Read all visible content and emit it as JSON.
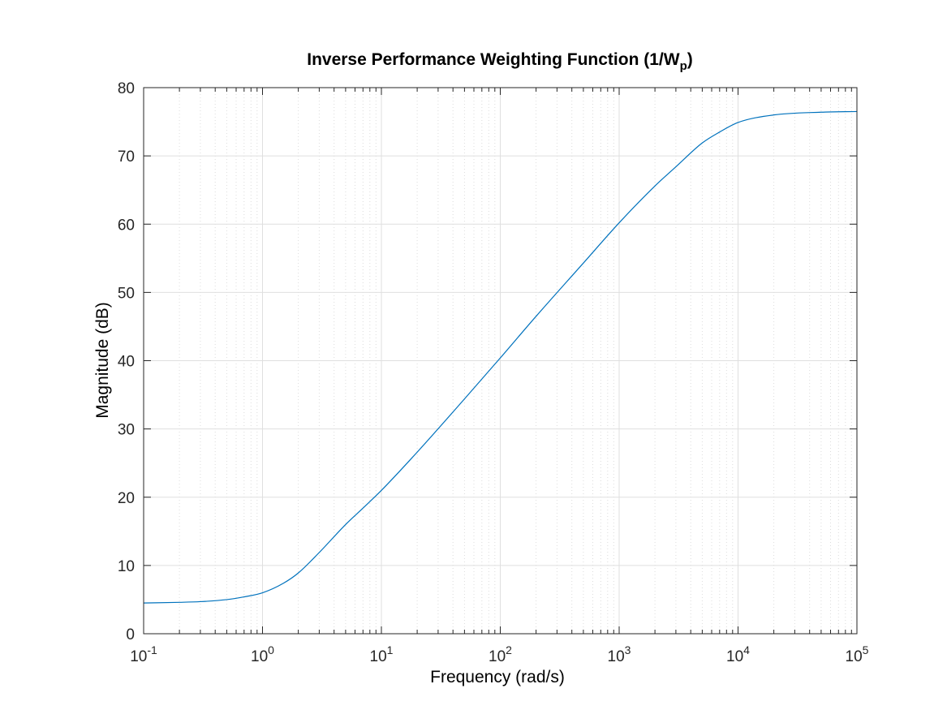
{
  "chart_data": {
    "type": "line",
    "title": {
      "main": "Inverse Performance Weighting Function (1/W",
      "subscript": "p",
      "close": ")"
    },
    "xlabel": "Frequency  (rad/s)",
    "ylabel": "Magnitude (dB)",
    "xscale": "log",
    "xlim": [
      0.1,
      100000
    ],
    "ylim": [
      0,
      80
    ],
    "grid": true,
    "minor_grid": true,
    "box": true,
    "x_ticks": [
      {
        "base": "10",
        "exp": "-1",
        "value": 0.1
      },
      {
        "base": "10",
        "exp": "0",
        "value": 1
      },
      {
        "base": "10",
        "exp": "1",
        "value": 10
      },
      {
        "base": "10",
        "exp": "2",
        "value": 100
      },
      {
        "base": "10",
        "exp": "3",
        "value": 1000
      },
      {
        "base": "10",
        "exp": "4",
        "value": 10000
      },
      {
        "base": "10",
        "exp": "5",
        "value": 100000
      }
    ],
    "y_ticks": [
      {
        "label": "0",
        "value": 0
      },
      {
        "label": "10",
        "value": 10
      },
      {
        "label": "20",
        "value": 20
      },
      {
        "label": "30",
        "value": 30
      },
      {
        "label": "40",
        "value": 40
      },
      {
        "label": "50",
        "value": 50
      },
      {
        "label": "60",
        "value": 60
      },
      {
        "label": "70",
        "value": 70
      },
      {
        "label": "80",
        "value": 80
      }
    ],
    "series": [
      {
        "color": "#0072bd",
        "x": [
          0.1,
          0.2,
          0.3,
          0.5,
          0.7,
          1,
          1.5,
          2,
          3,
          5,
          7,
          10,
          20,
          50,
          100,
          200,
          500,
          1000,
          2000,
          3000,
          5000,
          7000,
          10000,
          20000,
          50000,
          100000
        ],
        "y": [
          4.5,
          4.6,
          4.7,
          5.0,
          5.4,
          6.0,
          7.4,
          8.9,
          11.9,
          16.0,
          18.4,
          21.0,
          26.6,
          34.4,
          40.4,
          46.5,
          54.3,
          60.2,
          65.6,
          68.4,
          71.9,
          73.5,
          74.9,
          76.0,
          76.4,
          76.5
        ]
      }
    ]
  }
}
